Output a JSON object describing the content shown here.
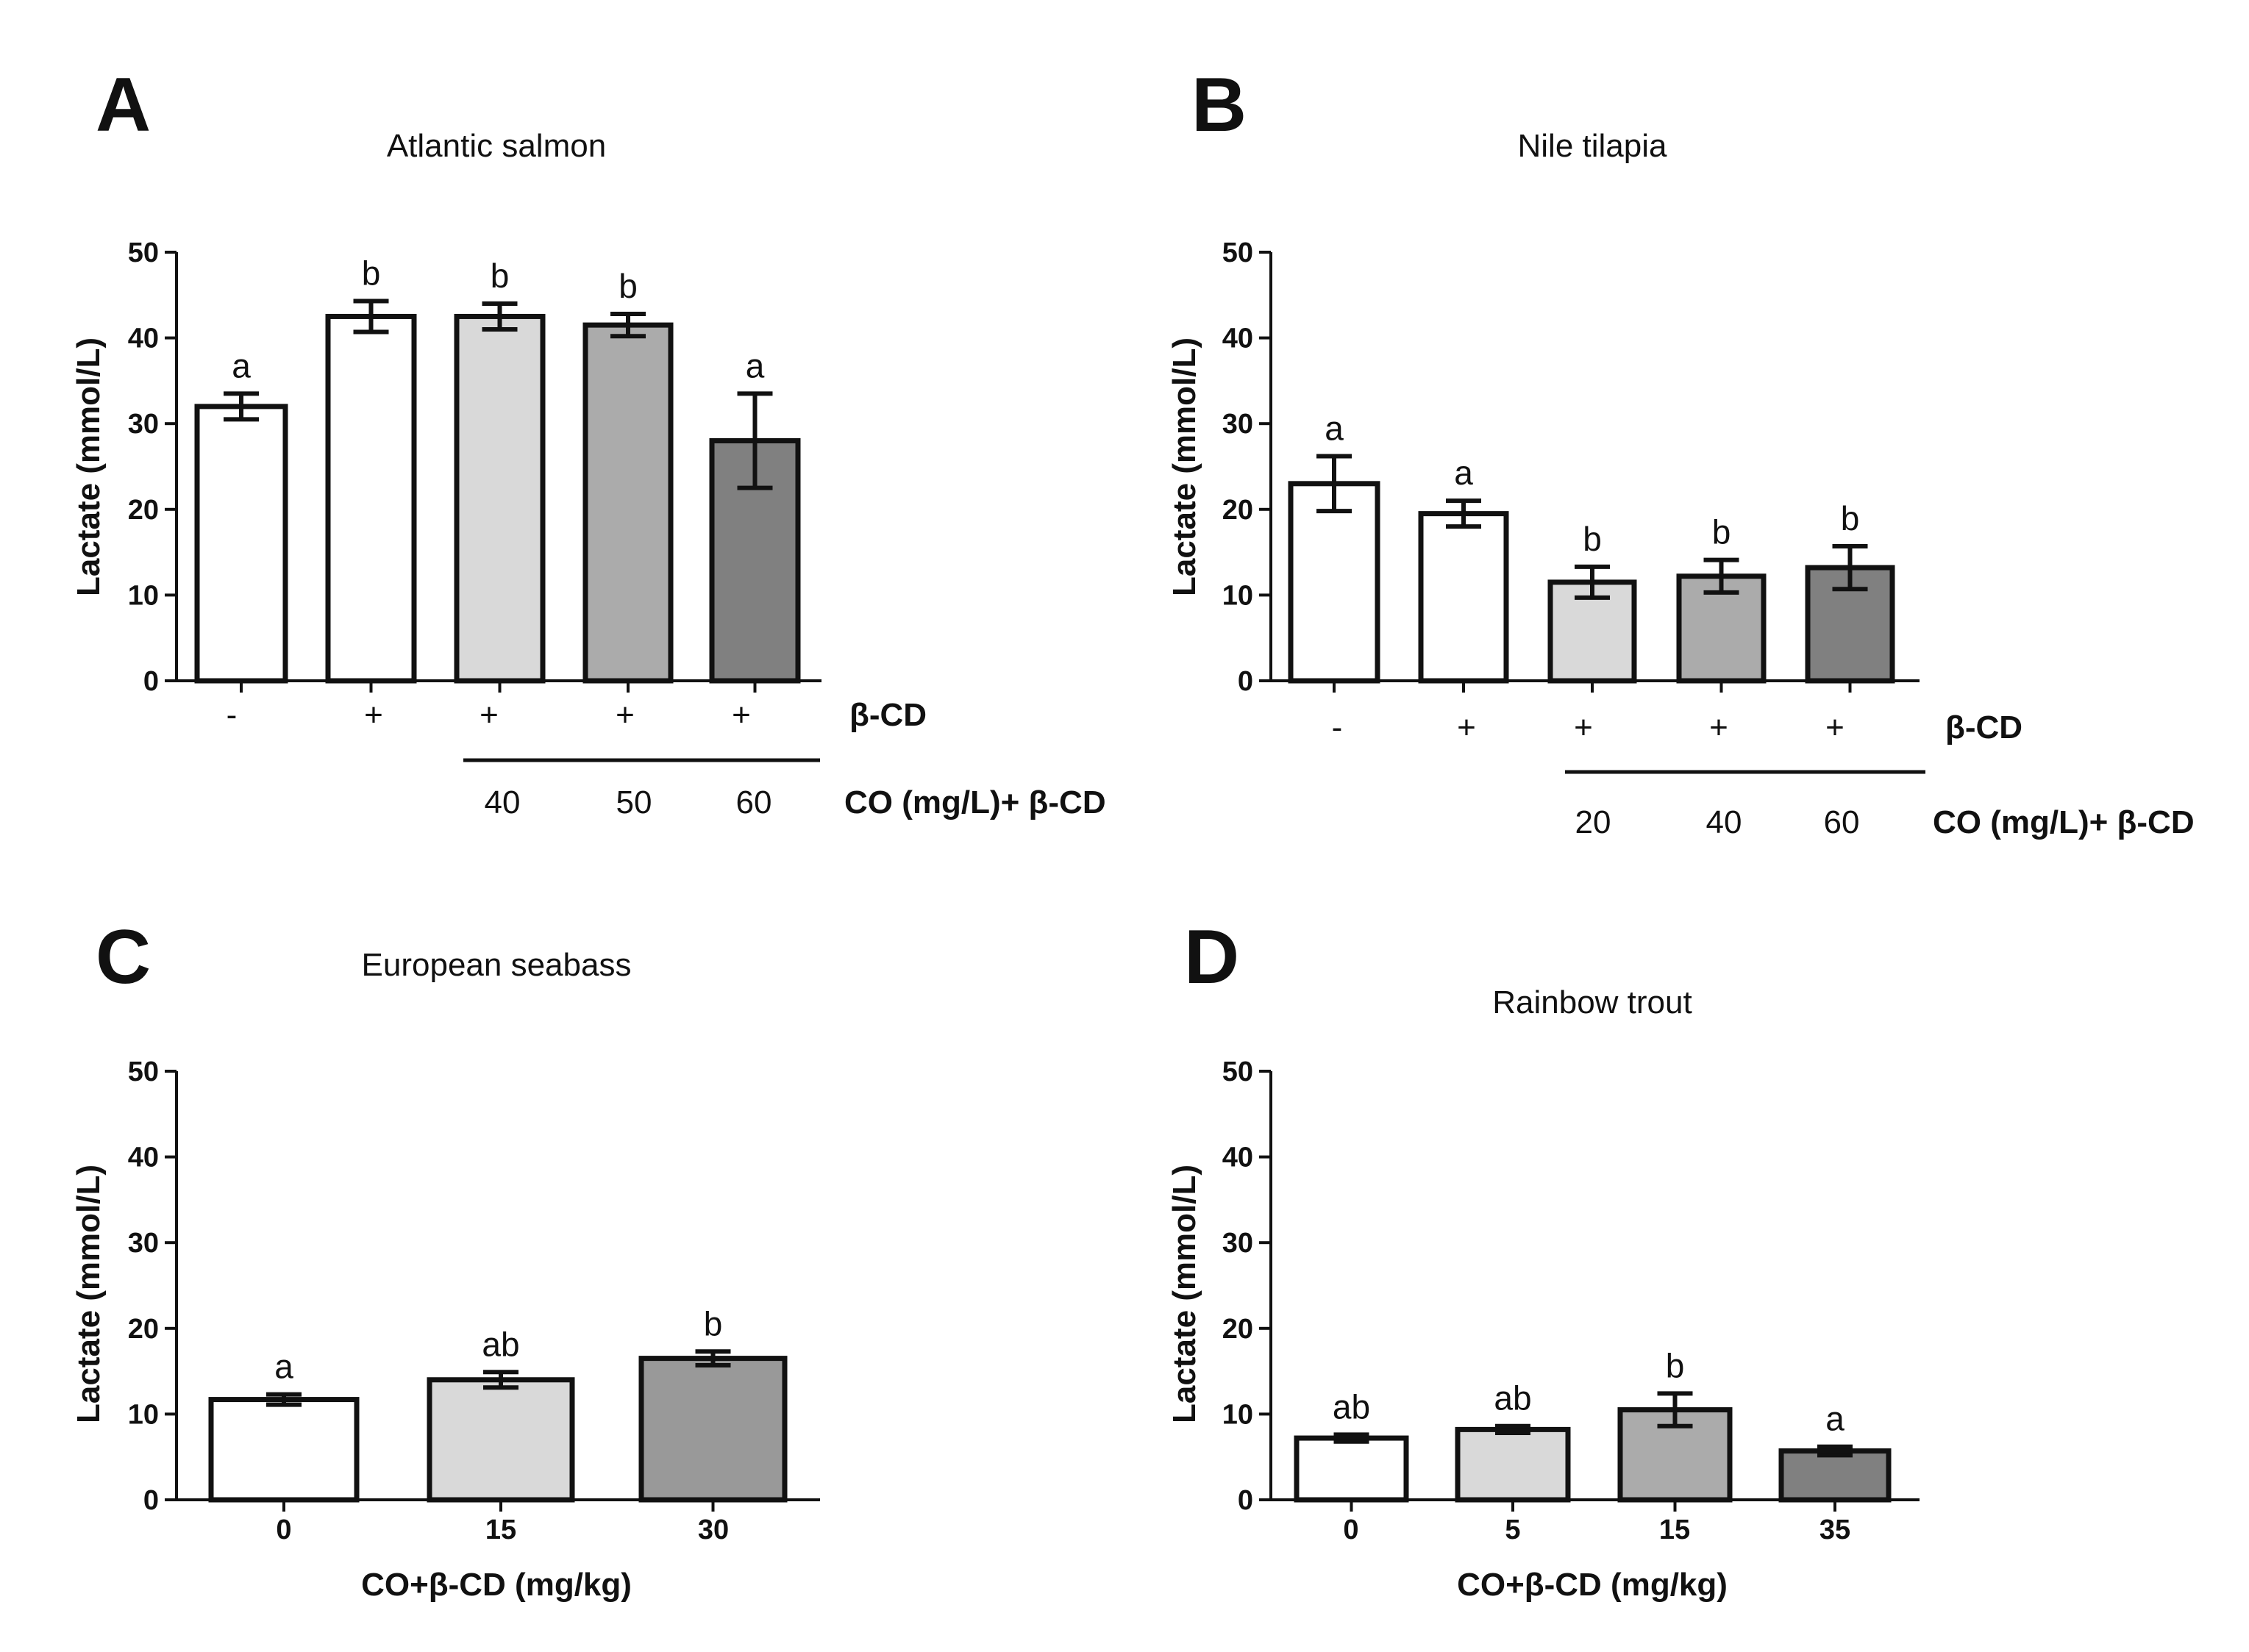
{
  "colors": {
    "white": "#ffffff",
    "light_gray": "#d9d9d9",
    "mid_gray": "#ababab",
    "dark_gray": "#808080",
    "gray": "#999999",
    "stroke": "#111111"
  },
  "chart_data": [
    {
      "type": "bar",
      "panel": "A",
      "title": "Atlantic salmon",
      "ylabel": "Lactate (mmol/L)",
      "ylim": [
        0,
        50
      ],
      "yticks": [
        "0",
        "10",
        "20",
        "30",
        "40",
        "50"
      ],
      "categories": [
        "-",
        "+",
        "+",
        "+",
        "+"
      ],
      "values": [
        32,
        42.5,
        42.5,
        41.5,
        28
      ],
      "errors": [
        1.5,
        1.8,
        1.5,
        1.3,
        5.5
      ],
      "letters": [
        "a",
        "b",
        "b",
        "b",
        "a"
      ],
      "fills": [
        "white",
        "white",
        "light_gray",
        "mid_gray",
        "dark_gray"
      ],
      "group_label": "β-CD",
      "dose_label": "CO (mg/L)+ β-CD",
      "doses": [
        "40",
        "50",
        "60"
      ],
      "dose_start": 2
    },
    {
      "type": "bar",
      "panel": "B",
      "title": "Nile tilapia",
      "ylabel": "Lactate (mmol/L)",
      "ylim": [
        0,
        50
      ],
      "yticks": [
        "0",
        "10",
        "20",
        "30",
        "40",
        "50"
      ],
      "categories": [
        "-",
        "+",
        "+",
        "+",
        "+"
      ],
      "values": [
        23,
        19.5,
        11.5,
        12.2,
        13.2
      ],
      "errors": [
        3.2,
        1.5,
        1.8,
        1.9,
        2.5
      ],
      "letters": [
        "a",
        "a",
        "b",
        "b",
        "b"
      ],
      "fills": [
        "white",
        "white",
        "light_gray",
        "mid_gray",
        "dark_gray"
      ],
      "group_label": "β-CD",
      "dose_label": "CO (mg/L)+ β-CD",
      "doses": [
        "20",
        "40",
        "60"
      ],
      "dose_start": 2
    },
    {
      "type": "bar",
      "panel": "C",
      "title": "European seabass",
      "ylabel": "Lactate (mmol/L)",
      "ylim": [
        0,
        50
      ],
      "yticks": [
        "0",
        "10",
        "20",
        "30",
        "40",
        "50"
      ],
      "categories": [
        "0",
        "15",
        "30"
      ],
      "values": [
        11.7,
        14,
        16.5
      ],
      "errors": [
        0.6,
        0.9,
        0.8
      ],
      "letters": [
        "a",
        "ab",
        "b"
      ],
      "fills": [
        "white",
        "light_gray",
        "gray"
      ],
      "xlabel": "CO+β-CD (mg/kg)"
    },
    {
      "type": "bar",
      "panel": "D",
      "title": "Rainbow trout",
      "ylabel": "Lactate (mmol/L)",
      "ylim": [
        0,
        50
      ],
      "yticks": [
        "0",
        "10",
        "20",
        "30",
        "40",
        "50"
      ],
      "categories": [
        "0",
        "5",
        "15",
        "35"
      ],
      "values": [
        7.2,
        8.2,
        10.5,
        5.7
      ],
      "errors": [
        0.4,
        0.4,
        1.9,
        0.5
      ],
      "letters": [
        "ab",
        "ab",
        "b",
        "a"
      ],
      "fills": [
        "white",
        "light_gray",
        "mid_gray",
        "dark_gray"
      ],
      "xlabel": "CO+β-CD (mg/kg)"
    }
  ]
}
